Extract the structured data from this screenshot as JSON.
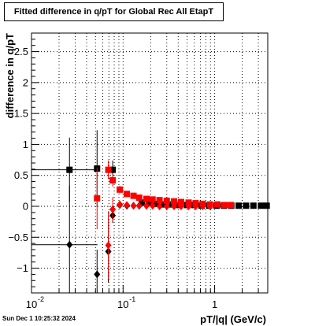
{
  "chart_data": {
    "type": "scatter",
    "title": "Fitted difference in q/pT for Global Rec All EtapT",
    "xlabel": "pT/|q| (GeV/c)",
    "ylabel": "difference in q/pT",
    "x_scale": "log",
    "xlim": [
      0.01,
      3.8
    ],
    "ylim": [
      -1.4,
      2.8
    ],
    "x_major_ticks": [
      0.01,
      0.1,
      1
    ],
    "x_tick_labels": [
      [
        "10",
        "-2"
      ],
      [
        "10",
        "-1"
      ],
      [
        "1",
        ""
      ]
    ],
    "y_ticks": [
      -1,
      -0.5,
      0,
      0.5,
      1,
      1.5,
      2,
      2.5
    ],
    "y_tick_labels": [
      "−1",
      "−0.5",
      "0",
      "0.5",
      "1",
      "1.5",
      "2",
      "2.5"
    ],
    "grid": true,
    "series": [
      {
        "color": "#000000",
        "marker": "square",
        "points": [
          {
            "x": 0.026,
            "y": 0.59,
            "xerr": [
              0.0165,
              0.0265
            ],
            "yerr": 0.52
          },
          {
            "x": 0.052,
            "y": 0.61,
            "yerr": 0.62
          },
          {
            "x": 0.077,
            "y": 0.59,
            "yerr": 0.15
          },
          {
            "x": 0.16,
            "y": 0.06
          },
          {
            "x": 0.19,
            "y": 0.05
          },
          {
            "x": 0.23,
            "y": 0.04
          },
          {
            "x": 0.28,
            "y": 0.03
          },
          {
            "x": 0.34,
            "y": 0.03
          },
          {
            "x": 0.41,
            "y": 0.02
          },
          {
            "x": 0.5,
            "y": 0.02
          },
          {
            "x": 0.6,
            "y": 0.02
          },
          {
            "x": 0.72,
            "y": 0.01
          },
          {
            "x": 0.87,
            "y": 0.01
          },
          {
            "x": 1.05,
            "y": 0.01
          },
          {
            "x": 1.26,
            "y": 0.01
          },
          {
            "x": 1.52,
            "y": 0.01
          },
          {
            "x": 1.83,
            "y": 0.01
          },
          {
            "x": 2.2,
            "y": 0.01
          },
          {
            "x": 2.65,
            "y": 0.01
          },
          {
            "x": 3.2,
            "y": 0.01
          },
          {
            "x": 3.7,
            "y": 0.01
          }
        ]
      },
      {
        "color": "#ff0000",
        "marker": "square",
        "points": [
          {
            "x": 0.052,
            "y": 0.13,
            "yerr": 0.5
          },
          {
            "x": 0.069,
            "y": 0.59,
            "yerr": 0.15
          },
          {
            "x": 0.077,
            "y": 0.42,
            "yerr": 0.1
          },
          {
            "x": 0.092,
            "y": 0.27,
            "yerr": 0.06
          },
          {
            "x": 0.11,
            "y": 0.2,
            "yerr": 0.05
          },
          {
            "x": 0.13,
            "y": 0.17,
            "yerr": 0.04
          },
          {
            "x": 0.15,
            "y": 0.14
          },
          {
            "x": 0.18,
            "y": 0.12
          },
          {
            "x": 0.21,
            "y": 0.11
          },
          {
            "x": 0.25,
            "y": 0.1
          },
          {
            "x": 0.3,
            "y": 0.09
          },
          {
            "x": 0.36,
            "y": 0.08
          },
          {
            "x": 0.43,
            "y": 0.07
          },
          {
            "x": 0.52,
            "y": 0.06
          },
          {
            "x": 0.62,
            "y": 0.05
          },
          {
            "x": 0.74,
            "y": 0.04
          },
          {
            "x": 0.89,
            "y": 0.03
          },
          {
            "x": 1.07,
            "y": 0.03
          },
          {
            "x": 1.28,
            "y": 0.02
          },
          {
            "x": 1.5,
            "y": 0.02
          }
        ]
      },
      {
        "color": "#000000",
        "marker": "diamond",
        "points": [
          {
            "x": 0.026,
            "y": -0.62,
            "xerr": [
              0.0165,
              0.0265
            ],
            "yerr": 0.95
          },
          {
            "x": 0.052,
            "y": -1.1,
            "yerr": 0.4
          },
          {
            "x": 0.069,
            "y": -0.73,
            "yerr": 0.5
          },
          {
            "x": 0.077,
            "y": -0.15,
            "yerr": 0.12
          },
          {
            "x": 0.092,
            "y": 0.02,
            "yerr": 0.05
          },
          {
            "x": 0.11,
            "y": 0.01
          },
          {
            "x": 0.13,
            "y": 0.01
          },
          {
            "x": 0.15,
            "y": 0.01
          },
          {
            "x": 0.18,
            "y": 0.01
          }
        ]
      },
      {
        "color": "#ff0000",
        "marker": "diamond",
        "points": [
          {
            "x": 0.069,
            "y": -0.63,
            "yerr": 0.55
          },
          {
            "x": 0.077,
            "y": -0.05,
            "yerr": 0.2
          },
          {
            "x": 0.092,
            "y": 0.03,
            "yerr": 0.06
          },
          {
            "x": 0.11,
            "y": 0.02
          },
          {
            "x": 0.13,
            "y": 0.01
          },
          {
            "x": 0.15,
            "y": 0.01
          },
          {
            "x": 0.18,
            "y": 0.01
          },
          {
            "x": 0.21,
            "y": 0.01
          },
          {
            "x": 0.25,
            "y": 0.0
          },
          {
            "x": 0.3,
            "y": 0.0
          },
          {
            "x": 0.36,
            "y": 0.0
          },
          {
            "x": 0.43,
            "y": 0.0
          },
          {
            "x": 0.52,
            "y": 0.0
          },
          {
            "x": 0.62,
            "y": 0.0
          },
          {
            "x": 0.74,
            "y": 0.0
          },
          {
            "x": 0.89,
            "y": 0.0
          }
        ]
      }
    ]
  },
  "timestamp": "Sun Dec  1 10:25:32 2024"
}
